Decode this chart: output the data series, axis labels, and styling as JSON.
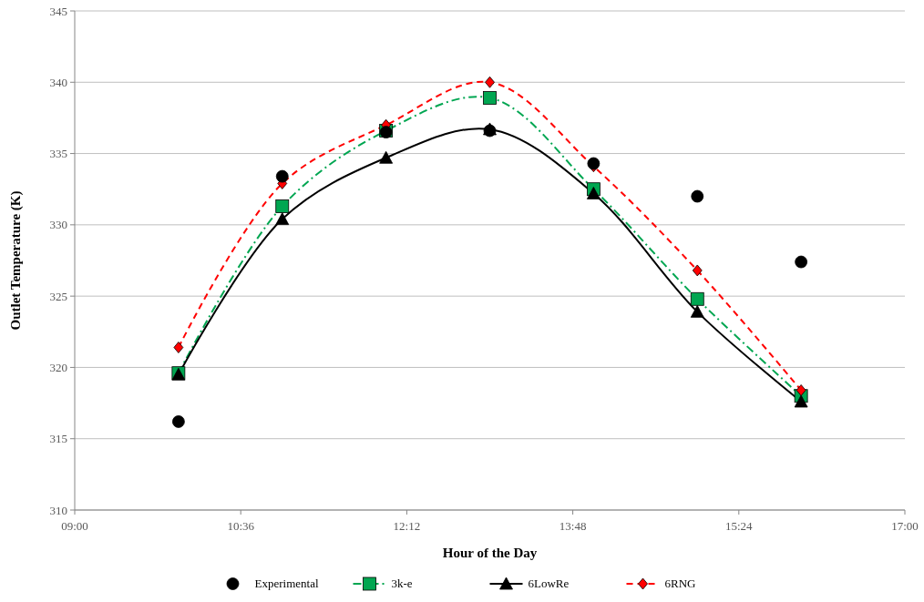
{
  "chart_data": {
    "type": "line",
    "xlabel": "Hour of the Day",
    "ylabel": "Outlet Temperature (K)",
    "x": [
      10,
      11,
      12,
      13,
      14,
      15,
      16
    ],
    "xlim": [
      9,
      17
    ],
    "xticks": [
      {
        "value": 9,
        "label": "09:00"
      },
      {
        "value": 10.6,
        "label": "10:36"
      },
      {
        "value": 12.2,
        "label": "12:12"
      },
      {
        "value": 13.8,
        "label": "13:48"
      },
      {
        "value": 15.4,
        "label": "15:24"
      },
      {
        "value": 17,
        "label": "17:00"
      }
    ],
    "ylim": [
      310,
      345
    ],
    "yticks": [
      310,
      315,
      320,
      325,
      330,
      335,
      340,
      345
    ],
    "grid": "y",
    "legend": "bottom",
    "series": [
      {
        "name": "Experimental",
        "type": "scatter",
        "color": "#000000",
        "marker": "circle",
        "values": [
          316.2,
          333.4,
          336.5,
          336.6,
          334.3,
          332.0,
          327.4
        ]
      },
      {
        "name": "3k-e",
        "color": "#00a651",
        "marker": "square",
        "line_style": "dashdot",
        "values": [
          319.6,
          331.3,
          336.6,
          338.9,
          332.5,
          324.8,
          318.0
        ]
      },
      {
        "name": "6LowRe",
        "color": "#000000",
        "marker": "triangle",
        "line_style": "solid",
        "values": [
          319.5,
          330.4,
          334.7,
          336.7,
          332.2,
          323.9,
          317.6
        ]
      },
      {
        "name": "6RNG",
        "color": "#ff0000",
        "marker": "diamond",
        "line_style": "dashed",
        "values": [
          321.4,
          332.9,
          337.0,
          340.0,
          334.1,
          326.8,
          318.4
        ]
      }
    ]
  }
}
